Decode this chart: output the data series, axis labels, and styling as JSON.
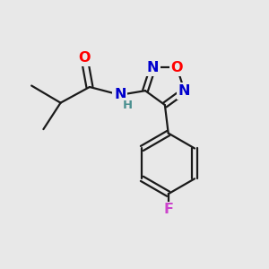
{
  "bg_color": "#e8e8e8",
  "bond_color": "#1a1a1a",
  "bond_width": 1.6,
  "atom_colors": {
    "O": "#ff0000",
    "N": "#0000cd",
    "F": "#cc44cc",
    "H": "#4a9090",
    "C": "#1a1a1a"
  },
  "font_size": 10.5,
  "fig_size": [
    3.0,
    3.0
  ],
  "dpi": 100
}
